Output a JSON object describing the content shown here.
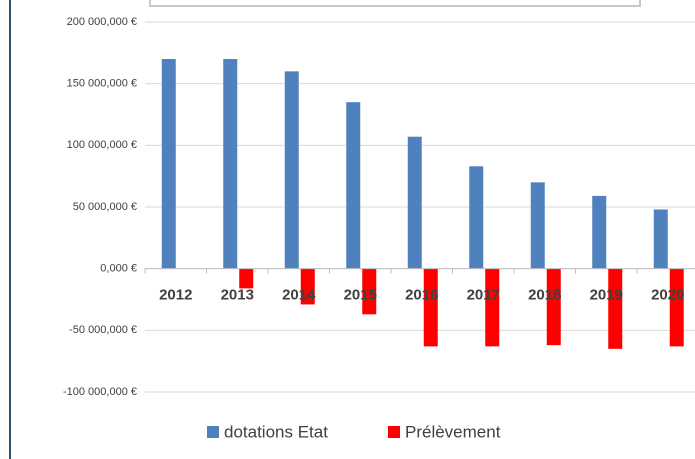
{
  "chart_data": {
    "type": "bar",
    "categories": [
      "2012",
      "2013",
      "2014",
      "2015",
      "2016",
      "2017",
      "2018",
      "2019",
      "2020"
    ],
    "series": [
      {
        "name": "dotations Etat",
        "color": "#4f81bd",
        "values": [
          170000000,
          170000000,
          160000000,
          135000000,
          107000000,
          83000000,
          70000000,
          59000000,
          48000000
        ]
      },
      {
        "name": "Prélèvement",
        "color": "#ff0000",
        "values": [
          0,
          -16000000,
          -29000000,
          -37000000,
          -63000000,
          -63000000,
          -62000000,
          -65000000,
          -63000000
        ]
      }
    ],
    "ylim": [
      -100000000,
      200000000
    ],
    "yticks": [
      {
        "value": -100000000,
        "label": "-100 000,000 €"
      },
      {
        "value": -50000000,
        "label": "-50 000,000 €"
      },
      {
        "value": 0,
        "label": "0,000 €"
      },
      {
        "value": 50000000,
        "label": "50 000,000 €"
      },
      {
        "value": 100000000,
        "label": "100 000,000 €"
      },
      {
        "value": 150000000,
        "label": "150 000,000 €"
      },
      {
        "value": 200000000,
        "label": "200 000,000 €"
      }
    ],
    "grid": true,
    "legend": "bottom"
  }
}
